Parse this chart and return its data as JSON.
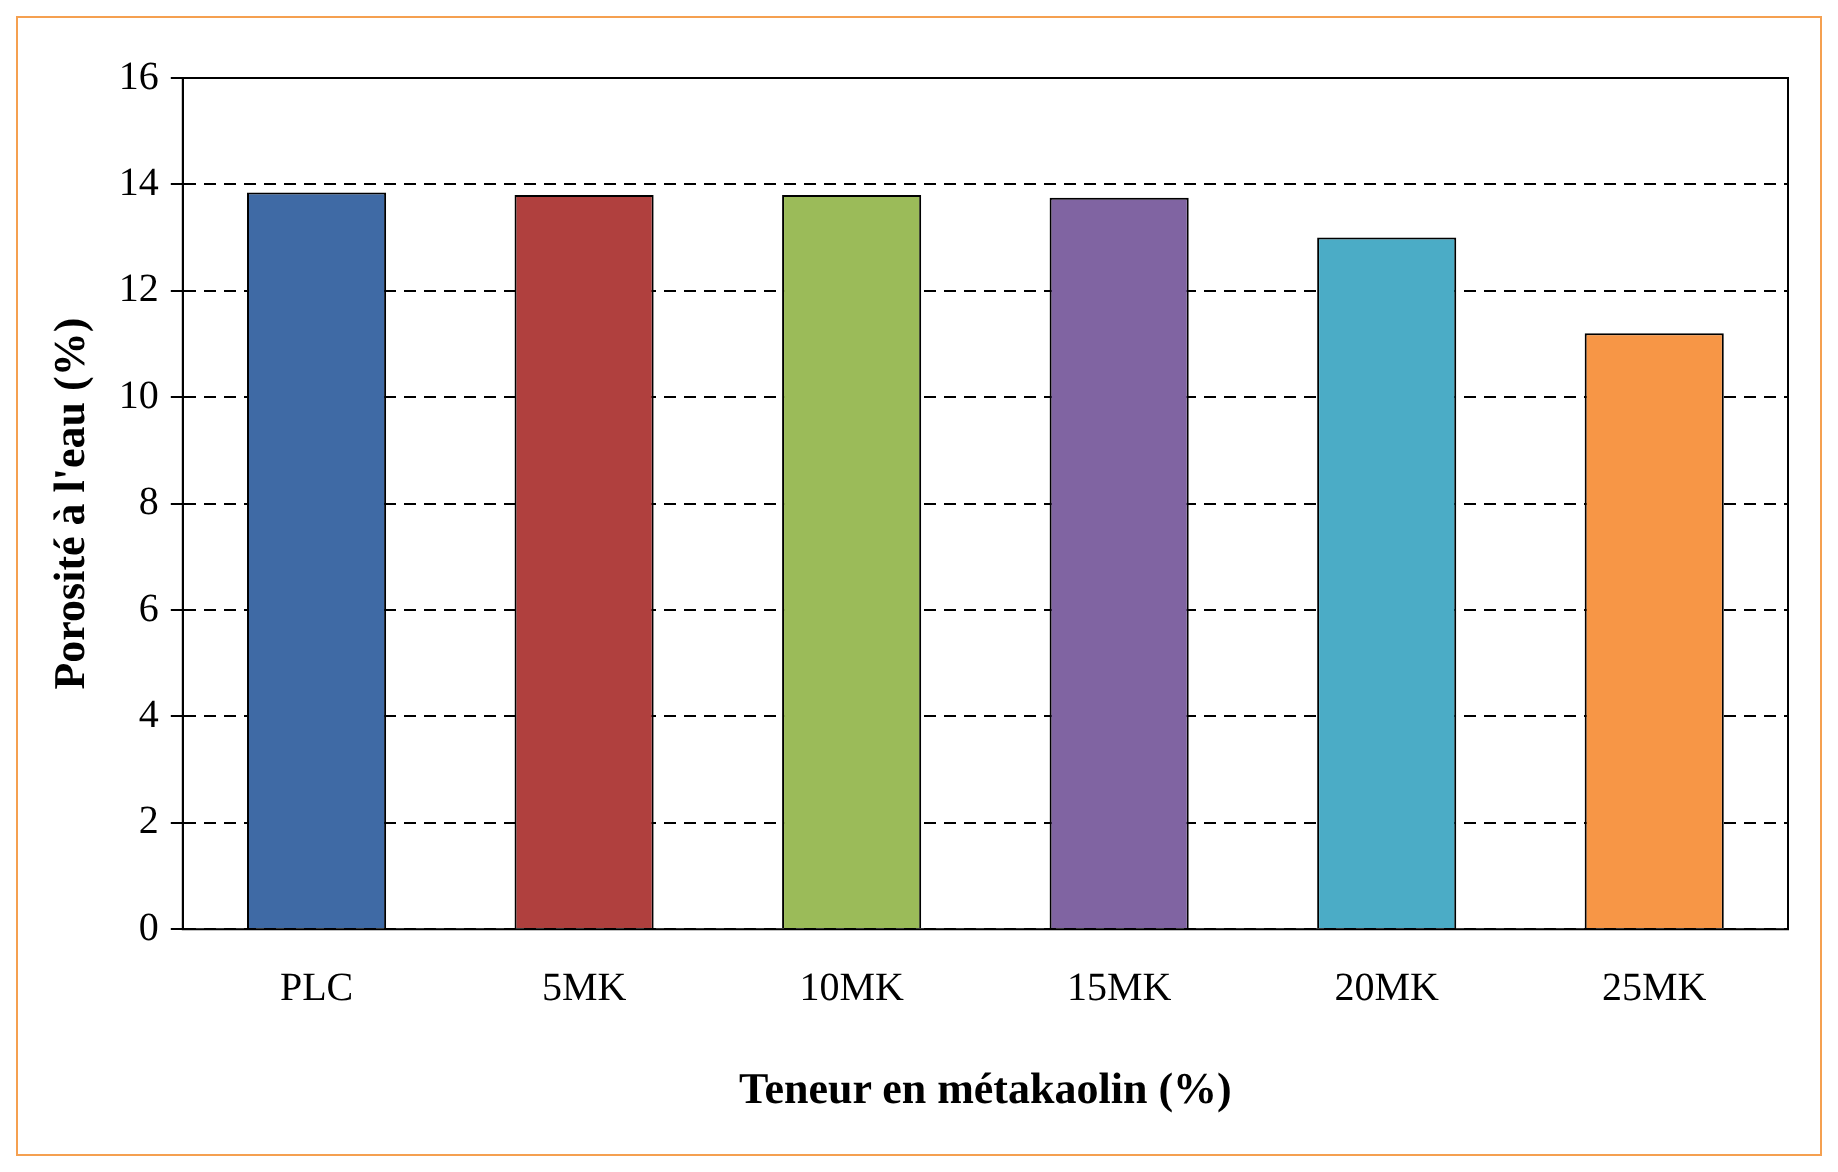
{
  "chart_data": {
    "type": "bar",
    "xlabel": "Teneur en métakaolin (%)",
    "ylabel": "Porosité à l'eau (%)",
    "categories": [
      "PLC",
      "5MK",
      "10MK",
      "15MK",
      "20MK",
      "25MK"
    ],
    "values": [
      13.85,
      13.8,
      13.8,
      13.75,
      13.0,
      11.2
    ],
    "colors": [
      "#3f6aa5",
      "#b0403e",
      "#9bbb59",
      "#8064a2",
      "#4bacc6",
      "#f79646"
    ],
    "ylim": [
      0,
      16
    ],
    "yticks": [
      0,
      2,
      4,
      6,
      8,
      10,
      12,
      14,
      16
    ],
    "grid": "y",
    "legend": false
  }
}
